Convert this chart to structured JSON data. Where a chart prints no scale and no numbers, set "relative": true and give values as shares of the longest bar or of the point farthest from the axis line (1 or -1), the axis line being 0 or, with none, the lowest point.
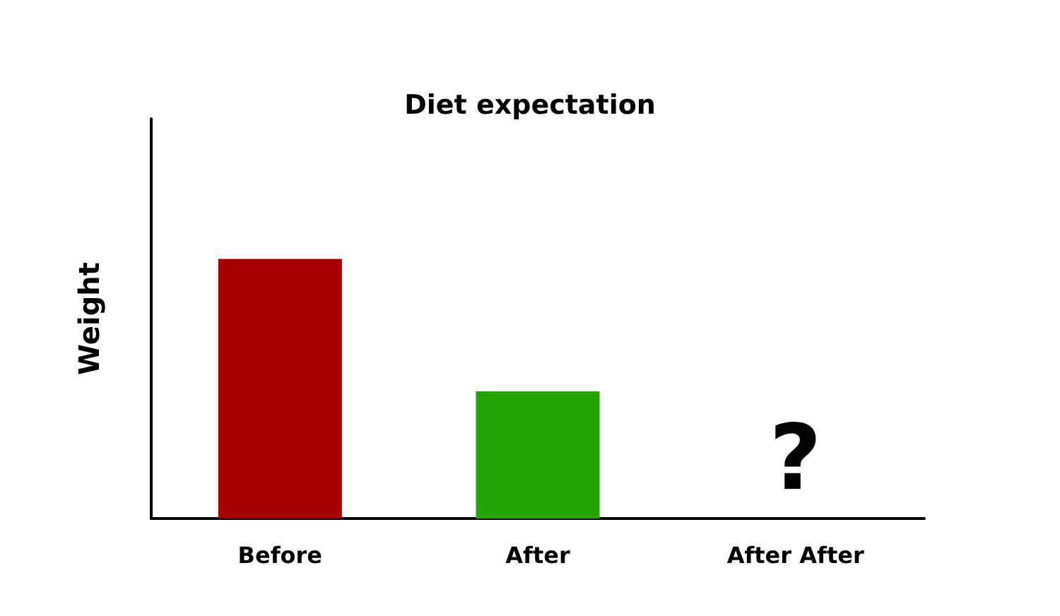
{
  "chart_data": {
    "type": "bar",
    "title": "Diet expectation",
    "ylabel": "Weight",
    "categories": [
      "Before",
      "After",
      "After After"
    ],
    "values": [
      1,
      0.49,
      null
    ],
    "colors": [
      "#a80000",
      "#22a504",
      "#000000"
    ],
    "relative": true,
    "grid": false,
    "annotations": [
      "?"
    ]
  }
}
